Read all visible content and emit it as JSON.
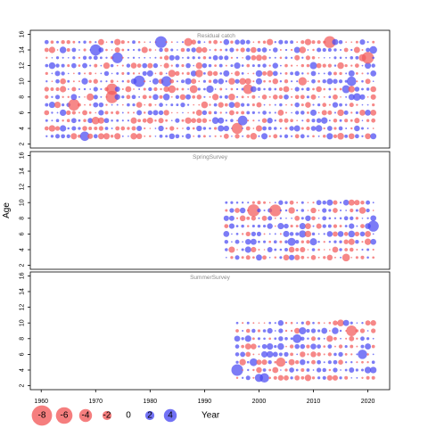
{
  "chart_data": {
    "type": "scatter",
    "subtype": "bubble-residuals",
    "ylabel": "Age",
    "xlabel": "Year",
    "xlim": [
      1958,
      2024
    ],
    "ylim": [
      1.5,
      16.5
    ],
    "x_ticks": [
      1960,
      1970,
      1980,
      1990,
      2000,
      2010,
      2020
    ],
    "y_ticks": [
      2,
      4,
      6,
      8,
      10,
      12,
      14,
      16
    ],
    "positive_color": "#4a4af2",
    "negative_color": "#f25a5a",
    "panels": [
      {
        "title": "Residual catch",
        "years": [
          1961,
          2021
        ],
        "ages": [
          3,
          15
        ]
      },
      {
        "title": "SpringSurvey",
        "years": [
          1994,
          2021
        ],
        "ages": [
          3,
          10
        ]
      },
      {
        "title": "SummerSurvey",
        "years": [
          1996,
          2021
        ],
        "ages": [
          3,
          10
        ]
      }
    ],
    "legend": {
      "entries": [
        {
          "label": "-8",
          "value": -8
        },
        {
          "label": "-6",
          "value": -6
        },
        {
          "label": "-4",
          "value": -4
        },
        {
          "label": "-2",
          "value": -2
        },
        {
          "label": "0",
          "value": 0
        },
        {
          "label": "2",
          "value": 2
        },
        {
          "label": "4",
          "value": 4
        }
      ],
      "title": "Year"
    }
  }
}
